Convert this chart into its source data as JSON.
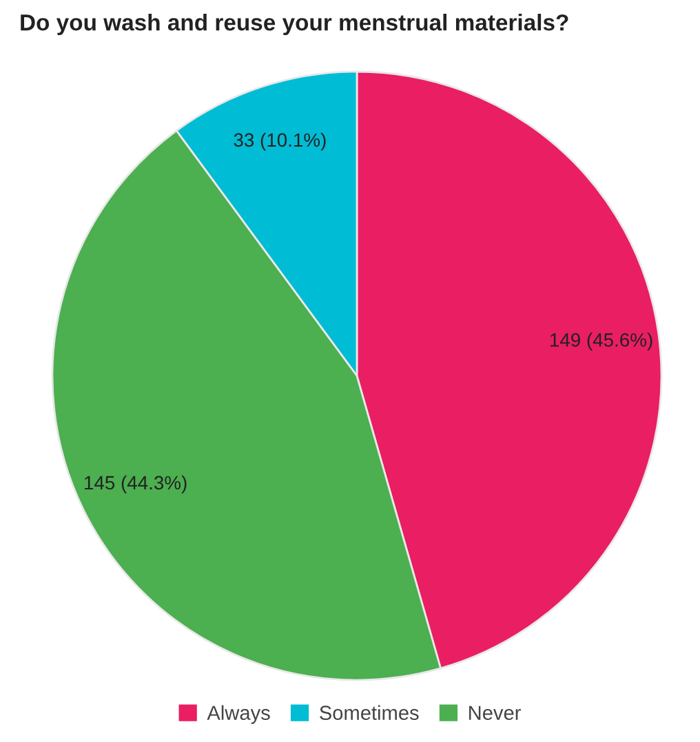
{
  "chart_data": {
    "type": "pie",
    "title": "Do you wash and reuse your menstrual materials?",
    "categories": [
      "Always",
      "Sometimes",
      "Never"
    ],
    "values": [
      149,
      33,
      145
    ],
    "colors": [
      "#e91e63",
      "#00bcd4",
      "#4caf50"
    ],
    "value_labels": [
      "149 (45.6%)",
      "33 (10.1%)",
      "145 (44.3%)"
    ],
    "legend": "bottom"
  }
}
